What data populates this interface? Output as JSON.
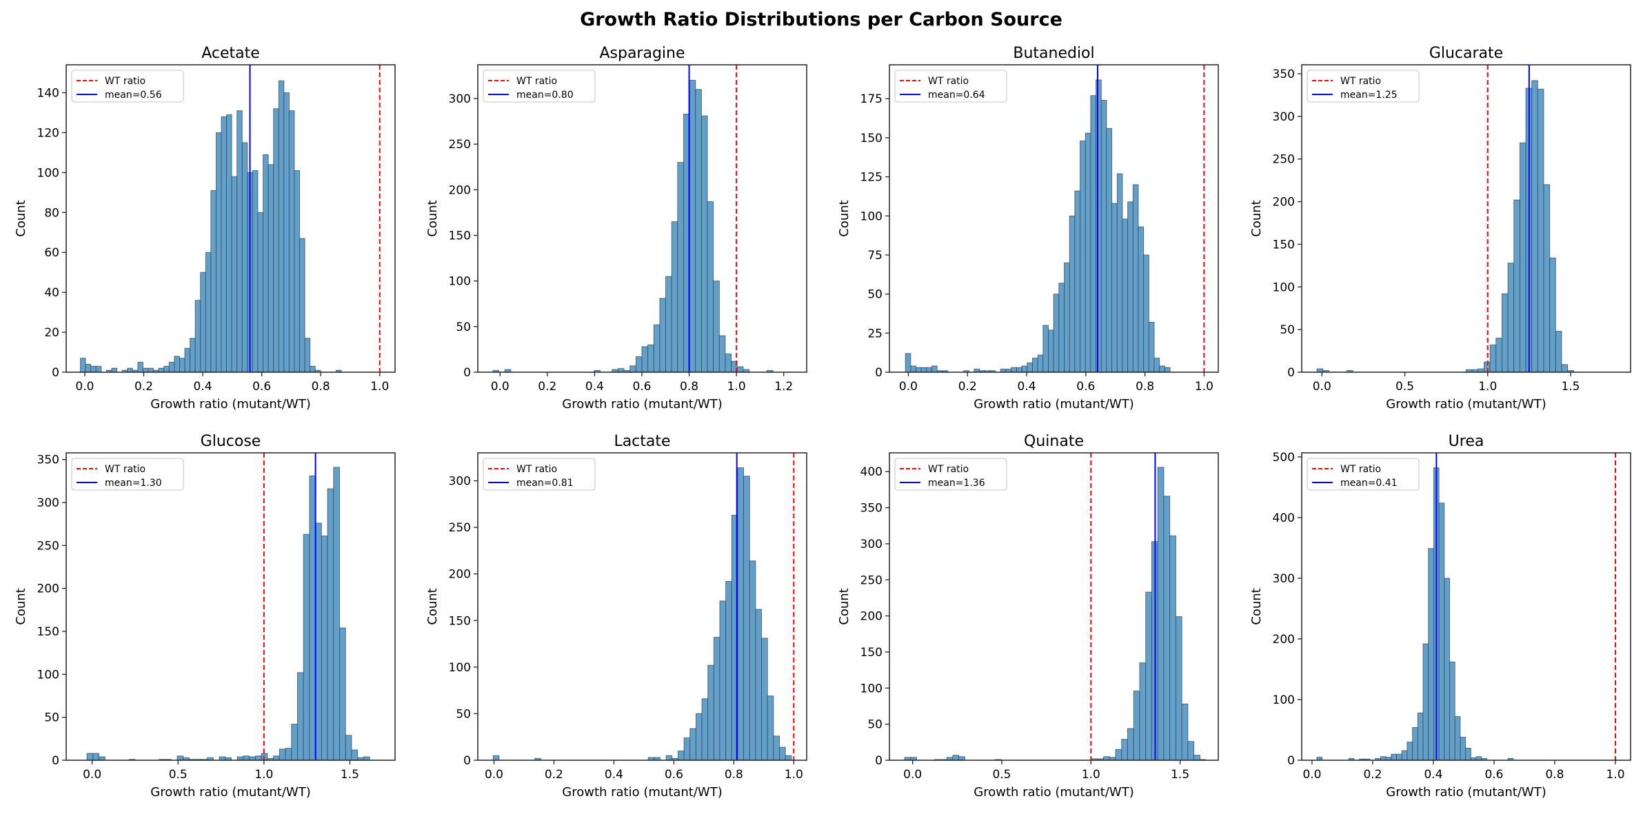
{
  "figure_title": "Growth Ratio Distributions per Carbon Source",
  "colors": {
    "bar": "#62a0ca",
    "bar_edge": "#2f3f4c",
    "wt_line": "#ff0000",
    "mean_line": "#0000ff"
  },
  "chart_data": [
    {
      "type": "bar",
      "title": "Acetate",
      "xlabel": "Growth ratio (mutant/WT)",
      "ylabel": "Count",
      "xlim": [
        -0.063,
        1.052
      ],
      "ylim": [
        0,
        154
      ],
      "xticks": [
        "0.0",
        "0.2",
        "0.4",
        "0.6",
        "0.8",
        "1.0"
      ],
      "yticks": [
        "0",
        "20",
        "40",
        "60",
        "80",
        "100",
        "120",
        "140"
      ],
      "bin_start": -0.015,
      "bin_width": 0.0177,
      "counts": [
        7,
        4,
        3,
        3,
        0,
        1,
        2,
        0,
        1,
        2,
        1,
        5,
        2,
        2,
        1,
        2,
        3,
        5,
        8,
        7,
        12,
        17,
        36,
        50,
        60,
        91,
        120,
        128,
        129,
        98,
        131,
        115,
        100,
        101,
        80,
        109,
        104,
        132,
        146,
        140,
        131,
        101,
        67,
        17,
        3,
        1,
        0,
        0,
        0,
        1
      ],
      "wt_ratio": 1.0,
      "mean": 0.56,
      "legend": [
        "WT ratio",
        "mean=0.56"
      ],
      "legend_position": "upper-left"
    },
    {
      "type": "bar",
      "title": "Asparagine",
      "xlabel": "Growth ratio (mutant/WT)",
      "ylabel": "Count",
      "xlim": [
        -0.094,
        1.297
      ],
      "ylim": [
        0,
        337
      ],
      "xticks": [
        "0.0",
        "0.2",
        "0.4",
        "0.6",
        "0.8",
        "1.0",
        "1.2"
      ],
      "yticks": [
        "0",
        "50",
        "100",
        "150",
        "200",
        "250",
        "300"
      ],
      "bin_start": -0.03,
      "bin_width": 0.0252,
      "counts": [
        2,
        0,
        3,
        0,
        0,
        0,
        0,
        0,
        0,
        0,
        0,
        0,
        0,
        0,
        0,
        0,
        0,
        2,
        0,
        0,
        3,
        4,
        2,
        7,
        17,
        28,
        30,
        52,
        81,
        105,
        165,
        230,
        283,
        320,
        310,
        281,
        187,
        100,
        40,
        20,
        12,
        6,
        3,
        0,
        0,
        0,
        2,
        0,
        0,
        0
      ],
      "wt_ratio": 1.0,
      "mean": 0.8,
      "legend": [
        "WT ratio",
        "mean=0.80"
      ],
      "legend_position": "upper-left"
    },
    {
      "type": "bar",
      "title": "Butanediol",
      "xlabel": "Growth ratio (mutant/WT)",
      "ylabel": "Count",
      "xlim": [
        -0.064,
        1.048
      ],
      "ylim": [
        0,
        196.7
      ],
      "xticks": [
        "0.0",
        "0.2",
        "0.4",
        "0.6",
        "0.8",
        "1.0"
      ],
      "yticks": [
        "0",
        "25",
        "50",
        "75",
        "100",
        "125",
        "150",
        "175"
      ],
      "bin_start": -0.01,
      "bin_width": 0.0179,
      "counts": [
        12,
        4,
        3,
        3,
        3,
        4,
        1,
        1,
        0,
        0,
        0,
        1,
        0,
        2,
        1,
        1,
        1,
        0,
        2,
        2,
        3,
        3,
        4,
        6,
        9,
        11,
        30,
        27,
        50,
        57,
        70,
        100,
        116,
        148,
        153,
        177,
        187,
        174,
        156,
        108,
        127,
        98,
        109,
        120,
        93,
        75,
        32,
        9,
        4,
        3
      ],
      "wt_ratio": 1.0,
      "mean": 0.64,
      "legend": [
        "WT ratio",
        "mean=0.64"
      ],
      "legend_position": "upper-left"
    },
    {
      "type": "bar",
      "title": "Glucarate",
      "xlabel": "Growth ratio (mutant/WT)",
      "ylabel": "Count",
      "xlim": [
        -0.122,
        1.862
      ],
      "ylim": [
        0,
        360.5
      ],
      "xticks": [
        "0.0",
        "0.5",
        "1.0",
        "1.5"
      ],
      "yticks": [
        "0",
        "50",
        "100",
        "150",
        "200",
        "250",
        "300",
        "350"
      ],
      "bin_start": -0.03,
      "bin_width": 0.036,
      "counts": [
        4,
        2,
        0,
        0,
        0,
        2,
        0,
        0,
        0,
        0,
        0,
        0,
        0,
        0,
        0,
        0,
        0,
        0,
        0,
        0,
        0,
        0,
        0,
        0,
        0,
        3,
        3,
        4,
        12,
        32,
        40,
        92,
        128,
        202,
        269,
        333,
        342,
        332,
        220,
        134,
        48,
        9,
        2
      ],
      "wt_ratio": 1.0,
      "mean": 1.25,
      "legend": [
        "WT ratio",
        "mean=1.25"
      ],
      "legend_position": "upper-left"
    },
    {
      "type": "bar",
      "title": "Glucose",
      "xlabel": "Growth ratio (mutant/WT)",
      "ylabel": "Count",
      "xlim": [
        -0.151,
        1.763
      ],
      "ylim": [
        0,
        357.8
      ],
      "xticks": [
        "0.0",
        "0.5",
        "1.0",
        "1.5"
      ],
      "yticks": [
        "0",
        "50",
        "100",
        "150",
        "200",
        "250",
        "300",
        "350"
      ],
      "bin_start": -0.03,
      "bin_width": 0.035,
      "counts": [
        8,
        8,
        4,
        0,
        0,
        0,
        0,
        1,
        0,
        0,
        0,
        0,
        1,
        1,
        0,
        5,
        3,
        1,
        1,
        1,
        3,
        0,
        4,
        3,
        0,
        4,
        5,
        4,
        5,
        8,
        2,
        5,
        13,
        14,
        42,
        102,
        263,
        331,
        276,
        261,
        316,
        341,
        154,
        29,
        12,
        3,
        4
      ],
      "wt_ratio": 1.0,
      "mean": 1.3,
      "legend": [
        "WT ratio",
        "mean=1.30"
      ],
      "legend_position": "upper-left"
    },
    {
      "type": "bar",
      "title": "Lactate",
      "xlabel": "Growth ratio (mutant/WT)",
      "ylabel": "Count",
      "xlim": [
        -0.054,
        1.043
      ],
      "ylim": [
        0,
        330
      ],
      "xticks": [
        "0.0",
        "0.2",
        "0.4",
        "0.6",
        "0.8",
        "1.0"
      ],
      "yticks": [
        "0",
        "50",
        "100",
        "150",
        "200",
        "250",
        "300"
      ],
      "bin_start": -0.003,
      "bin_width": 0.0199,
      "counts": [
        5,
        0,
        0,
        0,
        0,
        0,
        0,
        2,
        0,
        0,
        0,
        0,
        0,
        0,
        0,
        0,
        0,
        0,
        0,
        0,
        0,
        0,
        0,
        0,
        0,
        0,
        3,
        3,
        0,
        5,
        2,
        10,
        24,
        34,
        50,
        66,
        102,
        132,
        171,
        192,
        263,
        314,
        305,
        214,
        162,
        131,
        69,
        26,
        14,
        5
      ],
      "wt_ratio": 1.0,
      "mean": 0.81,
      "legend": [
        "WT ratio",
        "mean=0.81"
      ],
      "legend_position": "upper-left"
    },
    {
      "type": "bar",
      "title": "Quinate",
      "xlabel": "Growth ratio (mutant/WT)",
      "ylabel": "Count",
      "xlim": [
        -0.13,
        1.714
      ],
      "ylim": [
        0,
        426
      ],
      "xticks": [
        "0.0",
        "0.5",
        "1.0",
        "1.5"
      ],
      "yticks": [
        "0",
        "50",
        "100",
        "150",
        "200",
        "250",
        "300",
        "350",
        "400"
      ],
      "bin_start": -0.045,
      "bin_width": 0.0338,
      "counts": [
        4,
        4,
        0,
        0,
        0,
        1,
        1,
        4,
        7,
        5,
        0,
        0,
        0,
        0,
        0,
        1,
        0,
        0,
        0,
        0,
        0,
        0,
        0,
        0,
        0,
        0,
        0,
        0,
        0,
        0,
        0,
        2,
        2,
        5,
        4,
        15,
        29,
        44,
        96,
        135,
        233,
        303,
        406,
        366,
        311,
        199,
        78,
        26,
        7,
        1
      ],
      "wt_ratio": 1.0,
      "mean": 1.36,
      "legend": [
        "WT ratio",
        "mean=1.36"
      ],
      "legend_position": "upper-left"
    },
    {
      "type": "bar",
      "title": "Urea",
      "xlabel": "Growth ratio (mutant/WT)",
      "ylabel": "Count",
      "xlim": [
        -0.034,
        1.05
      ],
      "ylim": [
        0,
        506.7
      ],
      "xticks": [
        "0.0",
        "0.2",
        "0.4",
        "0.6",
        "0.8",
        "1.0"
      ],
      "yticks": [
        "0",
        "100",
        "200",
        "300",
        "400",
        "500"
      ],
      "bin_start": 0.016,
      "bin_width": 0.0175,
      "counts": [
        5,
        0,
        0,
        0,
        0,
        0,
        3,
        0,
        2,
        2,
        0,
        3,
        6,
        5,
        10,
        10,
        16,
        30,
        54,
        78,
        192,
        349,
        482,
        424,
        300,
        162,
        72,
        38,
        20,
        4,
        6,
        3,
        0,
        0,
        0,
        0,
        3
      ],
      "wt_ratio": 1.0,
      "mean": 0.41,
      "legend": [
        "WT ratio",
        "mean=0.41"
      ],
      "legend_position": "upper-left"
    }
  ]
}
